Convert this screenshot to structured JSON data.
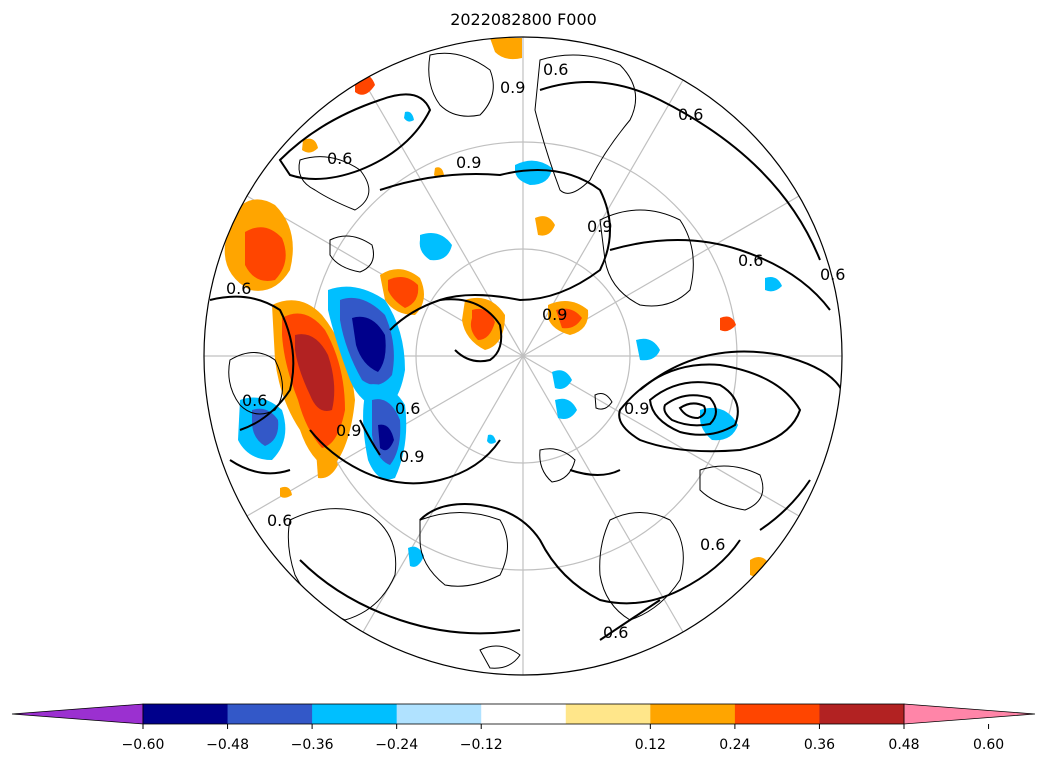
{
  "title": "2022082800 F000",
  "colorbar": {
    "colors": {
      "under": "#9b30d0",
      "bins": [
        "#00008b",
        "#3358c8",
        "#00bfff",
        "#b0e2ff",
        "#ffffff",
        "#ffe68a",
        "#ffa500",
        "#ff4500",
        "#b22222"
      ],
      "over": "#ff85a8"
    },
    "ticks": [
      "−0.60",
      "−0.48",
      "−0.36",
      "−0.24",
      "−0.12",
      "0.12",
      "0.24",
      "0.36",
      "0.48",
      "0.60"
    ]
  },
  "contour_labels": {
    "l1": "0.6",
    "l2": "0.9",
    "l3": "0.6",
    "l4": "0.6",
    "l5": "0.9",
    "l6": "0.6",
    "l7": "0.6",
    "l8": "0.6",
    "l9": "0.9",
    "l10": "0.9",
    "l11": "0.9",
    "l12": "0.6",
    "l13": "0.6",
    "l14": "0.6",
    "l15": "0.6",
    "l16": "0.9",
    "l17": "0.6",
    "l18": "0.9"
  }
}
